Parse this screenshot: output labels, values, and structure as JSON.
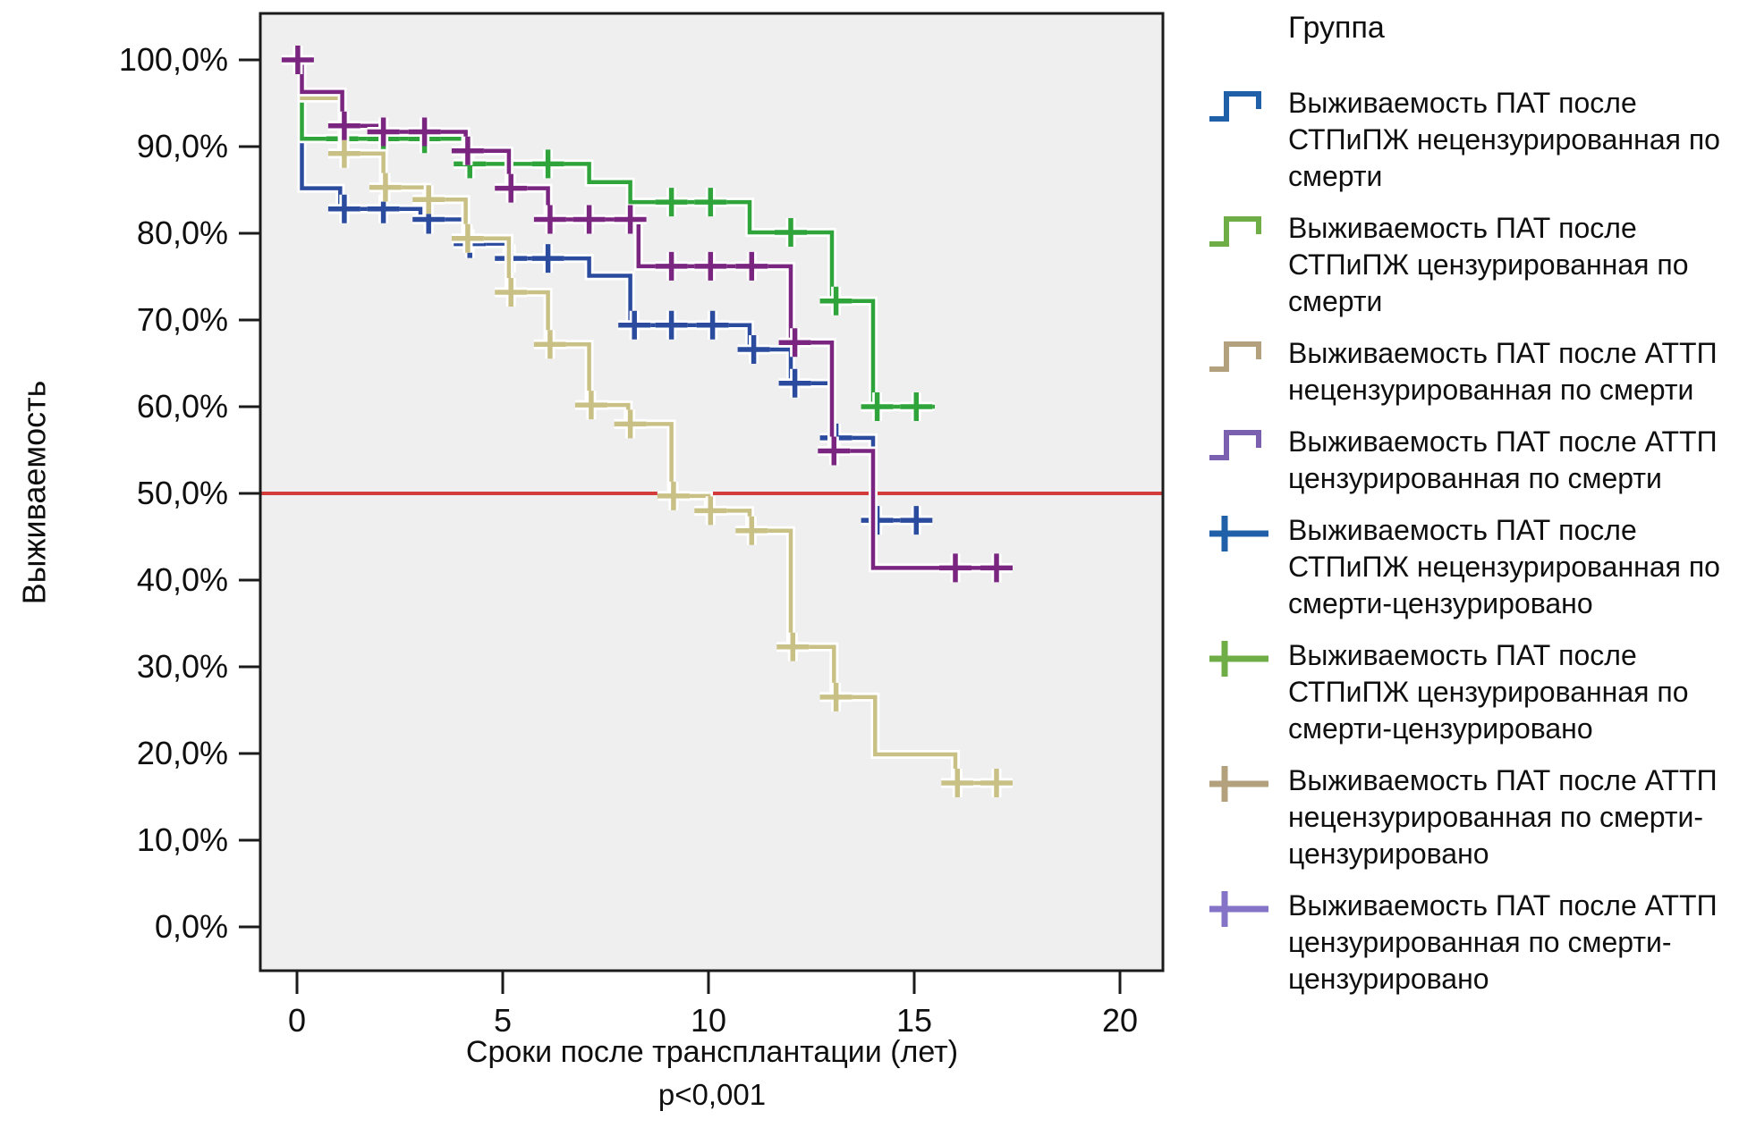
{
  "figure": {
    "background": "#ffffff",
    "plot_background": "#efefef",
    "frame_color": "#1b1b1b",
    "text_color": "#0f0f0f"
  },
  "legend": {
    "title": "Группа",
    "items": [
      {
        "marker": "step",
        "color": "#2060a8",
        "label": "Выживаемость ПАТ после СТПиПЖ нецензурированная по смерти"
      },
      {
        "marker": "step",
        "color": "#6fae46",
        "label": "Выживаемость ПАТ после СТПиПЖ цензурированная по смерти"
      },
      {
        "marker": "step",
        "color": "#b3a17e",
        "label": "Выживаемость ПАТ после АТТП нецензурированная по смерти"
      },
      {
        "marker": "step",
        "color": "#7c60b0",
        "label": "Выживаемость ПАТ после АТТП цензурированная по смерти"
      },
      {
        "marker": "plus",
        "color": "#2060a8",
        "label": "Выживаемость ПАТ после СТПиПЖ нецензурированная по смерти-цензурировано"
      },
      {
        "marker": "plus",
        "color": "#6fae46",
        "label": "Выживаемость ПАТ после СТПиПЖ цензурированная по смерти-цензурировано"
      },
      {
        "marker": "plus",
        "color": "#b3a17e",
        "label": "Выживаемость ПАТ после АТТП нецензурированная по смерти-цензурировано"
      },
      {
        "marker": "plus",
        "color": "#8473c6",
        "label": "Выживаемость ПАТ после АТТП цензурированная по смерти-цензурировано"
      }
    ]
  },
  "chart_data": {
    "type": "line",
    "subtype": "kaplan-meier-step",
    "title": "",
    "xlabel": "Сроки после трансплантации (лет)",
    "xlabel_note": "p<0,001",
    "ylabel": "Выживаемость",
    "xlim": [
      0,
      20
    ],
    "ylim": [
      0,
      100
    ],
    "x_ticks": [
      0,
      5,
      10,
      15,
      20
    ],
    "x_tick_labels": [
      "0",
      "5",
      "10",
      "15",
      "20"
    ],
    "y_ticks": [
      100,
      90,
      80,
      70,
      60,
      50,
      40,
      30,
      20,
      10,
      0
    ],
    "y_tick_labels": [
      "100,0%",
      "90,0%",
      "80,0%",
      "70,0%",
      "60,0%",
      "50,0%",
      "40,0%",
      "30,0%",
      "20,0%",
      "10,0%",
      "0,0%"
    ],
    "grid": false,
    "legend_position": "right",
    "reference_line": {
      "y": 50,
      "color": "#d43c3c"
    },
    "series": [
      {
        "key": "stpipz-uncensored",
        "name": "Выживаемость ПАТ после СТПиПЖ нецензурированная по смерти",
        "color": "#2b4c9e",
        "end": 15.3,
        "steps": [
          [
            0,
            100
          ],
          [
            0.12,
            85.2
          ],
          [
            1.05,
            82.8
          ],
          [
            3.0,
            81.6
          ],
          [
            4.1,
            78.8
          ],
          [
            5.1,
            77.1
          ],
          [
            7.1,
            75.1
          ],
          [
            8.1,
            69.4
          ],
          [
            11.0,
            66.6
          ],
          [
            12.0,
            62.7
          ],
          [
            13.0,
            56.4
          ],
          [
            14.0,
            46.9
          ]
        ],
        "censors": [
          [
            1.15,
            82.8
          ],
          [
            2.1,
            82.8
          ],
          [
            3.2,
            81.6
          ],
          [
            4.2,
            78.8
          ],
          [
            5.2,
            77.1
          ],
          [
            6.1,
            77.1
          ],
          [
            8.2,
            69.4
          ],
          [
            9.1,
            69.4
          ],
          [
            10.1,
            69.4
          ],
          [
            11.1,
            66.6
          ],
          [
            12.1,
            62.7
          ],
          [
            13.1,
            56.4
          ],
          [
            14.1,
            46.9
          ],
          [
            15.05,
            46.9
          ]
        ]
      },
      {
        "key": "stpipz-censored",
        "name": "Выживаемость ПАТ после СТПиПЖ цензурированная по смерти",
        "color": "#2fa43b",
        "end": 15.5,
        "steps": [
          [
            0,
            100
          ],
          [
            0.12,
            90.9
          ],
          [
            4.1,
            88.0
          ],
          [
            7.1,
            85.9
          ],
          [
            8.1,
            83.6
          ],
          [
            11.0,
            80.1
          ],
          [
            13.0,
            72.2
          ],
          [
            14.0,
            60.0
          ]
        ],
        "censors": [
          [
            1.1,
            90.9
          ],
          [
            2.1,
            90.9
          ],
          [
            3.1,
            90.9
          ],
          [
            4.2,
            88.0
          ],
          [
            6.1,
            88.0
          ],
          [
            9.1,
            83.6
          ],
          [
            10.05,
            83.6
          ],
          [
            12.0,
            80.1
          ],
          [
            13.1,
            72.2
          ],
          [
            14.1,
            60.0
          ],
          [
            15.05,
            60.0
          ]
        ]
      },
      {
        "key": "attp-uncensored",
        "name": "Выживаемость ПАТ после АТТП нецензурированная по смерти",
        "color": "#c9c086",
        "end": 17.25,
        "steps": [
          [
            0,
            100
          ],
          [
            0.12,
            95.6
          ],
          [
            1.1,
            89.2
          ],
          [
            2.1,
            85.3
          ],
          [
            3.15,
            83.9
          ],
          [
            4.1,
            79.4
          ],
          [
            5.15,
            73.2
          ],
          [
            6.1,
            67.2
          ],
          [
            7.1,
            60.2
          ],
          [
            8.05,
            58.0
          ],
          [
            9.1,
            49.7
          ],
          [
            10.0,
            48.0
          ],
          [
            11.0,
            45.7
          ],
          [
            12.0,
            32.3
          ],
          [
            13.05,
            26.5
          ],
          [
            14.05,
            19.9
          ],
          [
            16.0,
            16.6
          ]
        ],
        "censors": [
          [
            1.15,
            89.2
          ],
          [
            2.15,
            85.3
          ],
          [
            3.2,
            83.9
          ],
          [
            4.15,
            79.4
          ],
          [
            5.2,
            73.2
          ],
          [
            6.15,
            67.2
          ],
          [
            7.15,
            60.2
          ],
          [
            8.1,
            58.0
          ],
          [
            9.15,
            49.7
          ],
          [
            10.05,
            48.0
          ],
          [
            11.05,
            45.7
          ],
          [
            12.05,
            32.3
          ],
          [
            13.1,
            26.5
          ],
          [
            16.05,
            16.6
          ],
          [
            17.0,
            16.6
          ]
        ]
      },
      {
        "key": "attp-censored",
        "name": "Выживаемость ПАТ после АТТП цензурированная по смерти",
        "color": "#7a2680",
        "end": 17.3,
        "steps": [
          [
            0,
            100
          ],
          [
            0.12,
            96.3
          ],
          [
            1.1,
            92.4
          ],
          [
            2.05,
            91.7
          ],
          [
            4.1,
            89.5
          ],
          [
            5.15,
            85.2
          ],
          [
            6.1,
            81.6
          ],
          [
            8.3,
            76.2
          ],
          [
            12.0,
            67.4
          ],
          [
            13.0,
            54.9
          ],
          [
            14.0,
            41.4
          ]
        ],
        "censors": [
          [
            0.02,
            100
          ],
          [
            1.15,
            92.4
          ],
          [
            2.1,
            91.7
          ],
          [
            3.1,
            91.7
          ],
          [
            4.15,
            89.5
          ],
          [
            5.2,
            85.2
          ],
          [
            6.15,
            81.6
          ],
          [
            7.1,
            81.6
          ],
          [
            8.1,
            81.6
          ],
          [
            9.1,
            76.2
          ],
          [
            10.05,
            76.2
          ],
          [
            11.05,
            76.2
          ],
          [
            12.1,
            67.4
          ],
          [
            13.05,
            54.9
          ],
          [
            16.0,
            41.4
          ],
          [
            17.0,
            41.4
          ]
        ]
      }
    ]
  }
}
